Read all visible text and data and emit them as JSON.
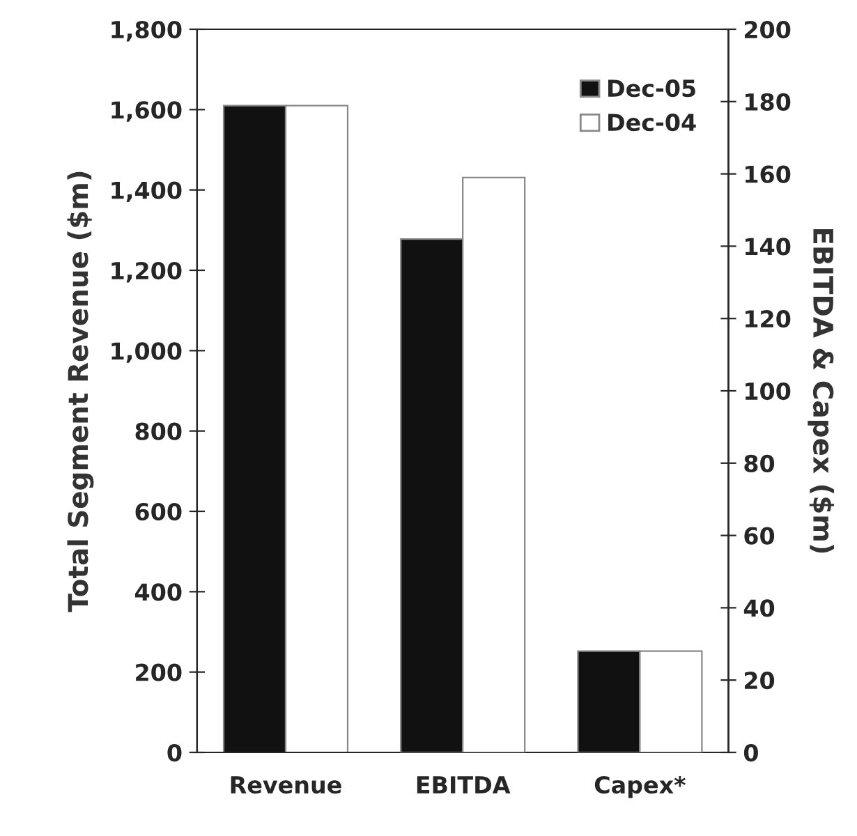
{
  "chart_data": {
    "type": "bar",
    "categories": [
      "Revenue",
      "EBITDA",
      "Capex*"
    ],
    "ylabel": "Total Segment Revenue ($m)",
    "y2label": "EBITDA & Capex ($m)",
    "ylim": [
      0,
      1800
    ],
    "yticks": [
      0,
      {
        "value": 200,
        "label": "200"
      },
      {
        "value": 400,
        "label": "400"
      },
      {
        "value": 600,
        "label": "600"
      },
      {
        "value": 800,
        "label": "800"
      },
      {
        "value": 1000,
        "label": "1,000"
      },
      {
        "value": 1200,
        "label": "1,200"
      },
      {
        "value": 1400,
        "label": "1,400"
      },
      {
        "value": 1600,
        "label": "1,600"
      },
      {
        "value": 1800,
        "label": "1,800"
      }
    ],
    "y2lim": [
      0,
      200
    ],
    "y2ticks": [
      0,
      20,
      40,
      60,
      80,
      100,
      120,
      140,
      160,
      180,
      200
    ],
    "series": [
      {
        "name": "Dec-05",
        "color": "#111111",
        "values": [
          1610,
          null,
          null
        ]
      },
      {
        "name": "Dec-04",
        "color": "#ffffff",
        "values": [
          1610,
          null,
          null
        ]
      },
      {
        "color": "#111111",
        "axis": "y2",
        "values": [
          null,
          142,
          28
        ]
      },
      {
        "color": "#ffffff",
        "axis": "y2",
        "values": [
          null,
          159,
          28
        ]
      }
    ],
    "legend": "top right",
    "grid": false
  }
}
